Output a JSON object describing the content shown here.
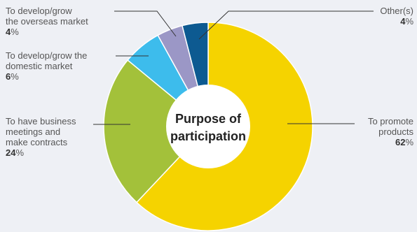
{
  "chart_data": {
    "type": "pie",
    "title": "Purpose of participation",
    "title_lines": [
      "Purpose of",
      "participation"
    ],
    "unit": "%",
    "legend": "callout-labels",
    "slices": [
      {
        "name": "To promote products",
        "label_lines": [
          "To promote",
          "products"
        ],
        "value": 62,
        "color": "#f5d300"
      },
      {
        "name": "To have business meetings and make contracts",
        "label_lines": [
          "To have business",
          "meetings and",
          "make contracts"
        ],
        "value": 24,
        "color": "#a3c13a"
      },
      {
        "name": "To develop/grow the domestic market",
        "label_lines": [
          "To develop/grow the",
          "domestic market"
        ],
        "value": 6,
        "color": "#3dbcec"
      },
      {
        "name": "To develop/grow the overseas market",
        "label_lines": [
          "To develop/grow",
          "the overseas market"
        ],
        "value": 4,
        "color": "#9b97c6"
      },
      {
        "name": "Other(s)",
        "label_lines": [
          "Other(s)"
        ],
        "value": 4,
        "color": "#0d5a91"
      }
    ]
  }
}
